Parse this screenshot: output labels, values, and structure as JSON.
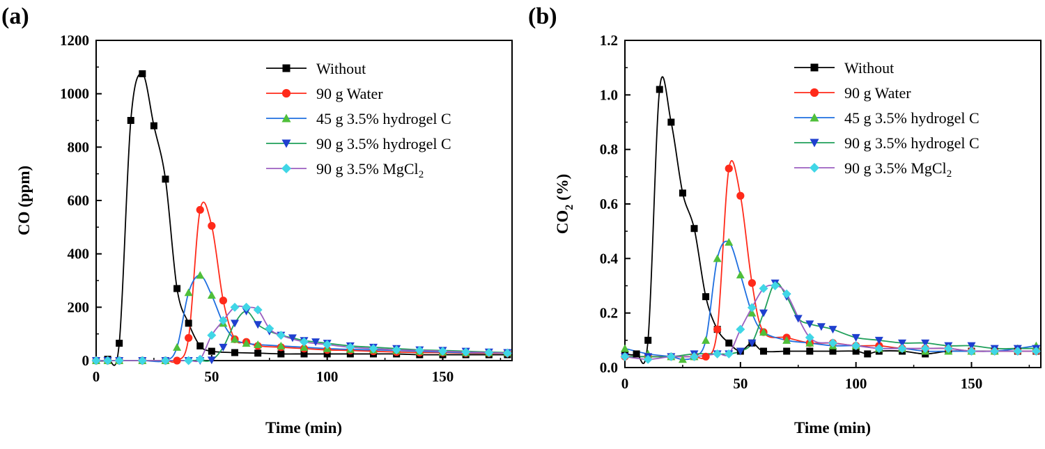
{
  "colors": {
    "Without": "#000000",
    "Water": "#ff2a1a",
    "HydrogelC45": "#4fbf3a",
    "HydrogelC90": "#1f3fcf",
    "MgCl2": "#40d6e6"
  },
  "chart_data": [
    {
      "panel": "(a)",
      "type": "line",
      "xlabel": "Time (min)",
      "ylabel": "CO (ppm)",
      "xlim": [
        0,
        180
      ],
      "ylim": [
        0,
        1200
      ],
      "xticks": [
        0,
        50,
        100,
        150
      ],
      "yticks": [
        0,
        200,
        400,
        600,
        800,
        1000,
        1200
      ],
      "legend_position": "top-right",
      "series": [
        {
          "name": "Without",
          "marker": "square",
          "line_color": "#000000",
          "marker_color": "#000000",
          "x": [
            0,
            5,
            10,
            15,
            20,
            25,
            30,
            35,
            40,
            45,
            50,
            60,
            70,
            80,
            90,
            100,
            110,
            120,
            130,
            140,
            150,
            160,
            170,
            178
          ],
          "y": [
            0,
            5,
            65,
            900,
            1075,
            880,
            680,
            270,
            140,
            55,
            35,
            30,
            28,
            25,
            25,
            25,
            25,
            25,
            25,
            22,
            22,
            22,
            22,
            22
          ]
        },
        {
          "name": "90 g Water",
          "marker": "circle",
          "line_color": "#ff2a1a",
          "marker_color": "#ff2a1a",
          "x": [
            0,
            5,
            10,
            20,
            30,
            35,
            40,
            45,
            50,
            55,
            60,
            65,
            70,
            80,
            90,
            100,
            110,
            120,
            130,
            140,
            150,
            160,
            170,
            178
          ],
          "y": [
            0,
            0,
            0,
            0,
            0,
            0,
            85,
            565,
            505,
            225,
            80,
            70,
            55,
            50,
            45,
            40,
            38,
            35,
            32,
            30,
            30,
            28,
            28,
            28
          ]
        },
        {
          "name": "45 g 3.5% hydrogel C",
          "marker": "triangle-up",
          "line_color": "#1f6fe0",
          "marker_color": "#4fbf3a",
          "x": [
            0,
            5,
            10,
            20,
            30,
            35,
            40,
            45,
            50,
            55,
            60,
            65,
            70,
            80,
            90,
            100,
            110,
            120,
            130,
            140,
            150,
            160,
            170,
            178
          ],
          "y": [
            0,
            0,
            0,
            0,
            0,
            50,
            255,
            320,
            245,
            140,
            80,
            65,
            60,
            55,
            50,
            45,
            42,
            40,
            38,
            35,
            32,
            30,
            30,
            30
          ]
        },
        {
          "name": "90 g 3.5% hydrogel C",
          "marker": "triangle-down",
          "line_color": "#1f9f5a",
          "marker_color": "#1f3fcf",
          "x": [
            0,
            5,
            10,
            20,
            30,
            40,
            45,
            50,
            55,
            60,
            65,
            70,
            75,
            80,
            85,
            90,
            95,
            100,
            110,
            120,
            130,
            140,
            150,
            160,
            170,
            178
          ],
          "y": [
            0,
            0,
            0,
            0,
            0,
            0,
            0,
            2,
            50,
            140,
            185,
            135,
            110,
            95,
            85,
            75,
            70,
            65,
            55,
            50,
            45,
            40,
            38,
            35,
            32,
            30
          ]
        },
        {
          "name": "90 g 3.5% MgCl2",
          "marker": "diamond",
          "line_color": "#9b5fc0",
          "marker_color": "#40d6e6",
          "x": [
            0,
            5,
            10,
            20,
            30,
            40,
            45,
            50,
            55,
            60,
            65,
            70,
            75,
            80,
            90,
            100,
            110,
            120,
            130,
            140,
            150,
            160,
            170,
            178
          ],
          "y": [
            0,
            0,
            0,
            0,
            0,
            0,
            5,
            95,
            150,
            200,
            200,
            190,
            120,
            95,
            70,
            60,
            50,
            45,
            40,
            38,
            35,
            32,
            30,
            28
          ]
        }
      ]
    },
    {
      "panel": "(b)",
      "type": "line",
      "xlabel": "Time (min)",
      "ylabel": "CO",
      "ylabel_subscript": "2",
      "ylabel_suffix": " (%)",
      "xlim": [
        0,
        180
      ],
      "ylim": [
        0,
        1.2
      ],
      "xticks": [
        0,
        50,
        100,
        150
      ],
      "yticks": [
        0.0,
        0.2,
        0.4,
        0.6,
        0.8,
        1.0,
        1.2
      ],
      "legend_position": "top-right",
      "series": [
        {
          "name": "Without",
          "marker": "square",
          "line_color": "#000000",
          "marker_color": "#000000",
          "x": [
            0,
            5,
            10,
            15,
            20,
            25,
            30,
            35,
            40,
            45,
            50,
            55,
            60,
            70,
            80,
            90,
            100,
            105,
            110,
            120,
            130,
            140,
            150,
            160,
            170,
            178
          ],
          "y": [
            0.05,
            0.05,
            0.1,
            1.02,
            0.9,
            0.64,
            0.51,
            0.26,
            0.14,
            0.09,
            0.06,
            0.09,
            0.06,
            0.06,
            0.06,
            0.06,
            0.06,
            0.05,
            0.06,
            0.06,
            0.05,
            0.06,
            0.06,
            0.06,
            0.06,
            0.06
          ]
        },
        {
          "name": "90 g Water",
          "marker": "circle",
          "line_color": "#ff2a1a",
          "marker_color": "#ff2a1a",
          "x": [
            0,
            10,
            20,
            30,
            35,
            40,
            45,
            50,
            55,
            60,
            70,
            80,
            90,
            100,
            110,
            120,
            130,
            140,
            150,
            160,
            170,
            178
          ],
          "y": [
            0.04,
            0.04,
            0.04,
            0.04,
            0.04,
            0.14,
            0.73,
            0.63,
            0.31,
            0.13,
            0.11,
            0.09,
            0.09,
            0.08,
            0.08,
            0.07,
            0.07,
            0.07,
            0.06,
            0.06,
            0.06,
            0.06
          ]
        },
        {
          "name": "45 g 3.5% hydrogel C",
          "marker": "triangle-up",
          "line_color": "#1f6fe0",
          "marker_color": "#4fbf3a",
          "x": [
            0,
            10,
            20,
            25,
            30,
            35,
            40,
            45,
            50,
            55,
            60,
            70,
            80,
            90,
            100,
            110,
            120,
            130,
            140,
            150,
            160,
            170,
            178
          ],
          "y": [
            0.07,
            0.05,
            0.04,
            0.03,
            0.04,
            0.1,
            0.4,
            0.46,
            0.34,
            0.2,
            0.13,
            0.1,
            0.09,
            0.08,
            0.08,
            0.07,
            0.07,
            0.06,
            0.06,
            0.06,
            0.06,
            0.07,
            0.08
          ]
        },
        {
          "name": "90 g 3.5% hydrogel C",
          "marker": "triangle-down",
          "line_color": "#1f9f5a",
          "marker_color": "#1f3fcf",
          "x": [
            0,
            10,
            20,
            30,
            40,
            45,
            50,
            55,
            60,
            65,
            70,
            75,
            80,
            85,
            90,
            100,
            110,
            120,
            130,
            140,
            150,
            160,
            170,
            178
          ],
          "y": [
            0.04,
            0.04,
            0.04,
            0.05,
            0.05,
            0.05,
            0.06,
            0.09,
            0.2,
            0.31,
            0.26,
            0.18,
            0.16,
            0.15,
            0.14,
            0.11,
            0.1,
            0.09,
            0.09,
            0.08,
            0.08,
            0.07,
            0.07,
            0.07
          ]
        },
        {
          "name": "90 g 3.5% MgCl2",
          "marker": "diamond",
          "line_color": "#9b5fc0",
          "marker_color": "#40d6e6",
          "x": [
            0,
            10,
            20,
            30,
            40,
            45,
            50,
            55,
            60,
            65,
            70,
            80,
            90,
            100,
            110,
            120,
            130,
            140,
            150,
            160,
            170,
            178
          ],
          "y": [
            0.04,
            0.03,
            0.04,
            0.04,
            0.05,
            0.05,
            0.14,
            0.22,
            0.29,
            0.3,
            0.27,
            0.11,
            0.09,
            0.08,
            0.07,
            0.07,
            0.07,
            0.07,
            0.06,
            0.06,
            0.06,
            0.06
          ]
        }
      ]
    }
  ],
  "legend": [
    {
      "label": "Without",
      "sub": ""
    },
    {
      "label": "90 g Water",
      "sub": ""
    },
    {
      "label": "45 g 3.5% hydrogel C",
      "sub": ""
    },
    {
      "label": "90 g 3.5% hydrogel C",
      "sub": ""
    },
    {
      "label": "90 g 3.5% MgCl",
      "sub": "2"
    }
  ]
}
